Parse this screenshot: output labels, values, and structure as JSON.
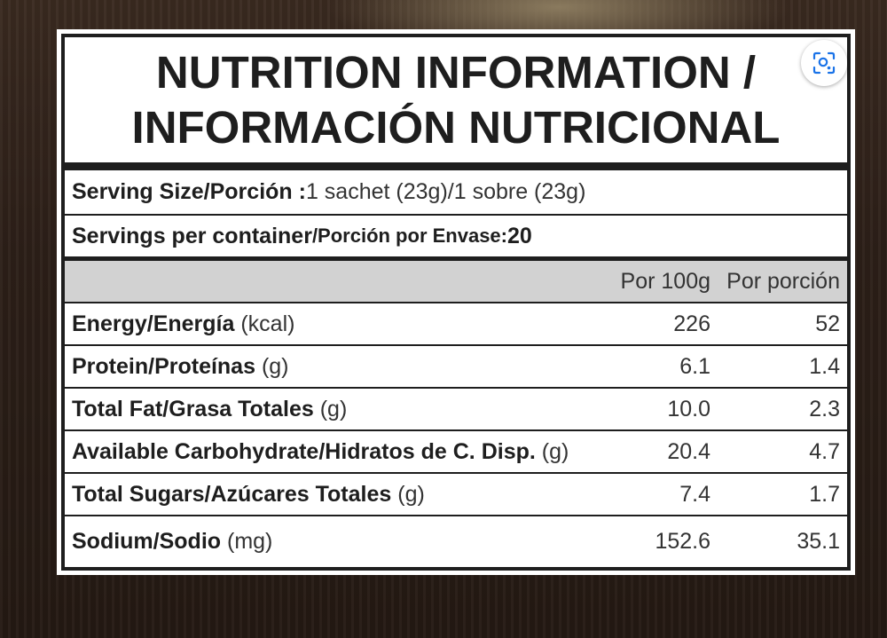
{
  "title": {
    "line1": "NUTRITION INFORMATION /",
    "line2": "INFORMACIÓN NUTRICIONAL"
  },
  "serving_size": {
    "label": "Serving Size/Porción :",
    "value": " 1 sachet (23g)/1 sobre (23g)"
  },
  "servings_per_container": {
    "label_en": "Servings per container",
    "label_es": "/Porción por Envase:",
    "value": " 20"
  },
  "columns": {
    "per100": "Por 100g",
    "perServing": "Por porción"
  },
  "nutrients": [
    {
      "name": "Energy/Energía",
      "unit": " (kcal)",
      "per100": "226",
      "perServing": "52"
    },
    {
      "name": "Protein/Proteínas",
      "unit": " (g)",
      "per100": "6.1",
      "perServing": "1.4"
    },
    {
      "name": "Total Fat/Grasa Totales",
      "unit": " (g)",
      "per100": "10.0",
      "perServing": "2.3"
    },
    {
      "name": "Available Carbohydrate/Hidratos de C. Disp.",
      "unit": " (g)",
      "per100": "20.4",
      "perServing": "4.7"
    },
    {
      "name": "Total Sugars/Azúcares Totales",
      "unit": " (g)",
      "per100": "7.4",
      "perServing": "1.7"
    },
    {
      "name": "Sodium/Sodio",
      "unit": " (mg)",
      "per100": "152.6",
      "perServing": "35.1"
    }
  ],
  "lens_button": {
    "icon": "visual-search-icon"
  },
  "colors": {
    "ink": "#1e1e1e",
    "header_band": "#d2d2d2",
    "background": "#2c1f18"
  }
}
